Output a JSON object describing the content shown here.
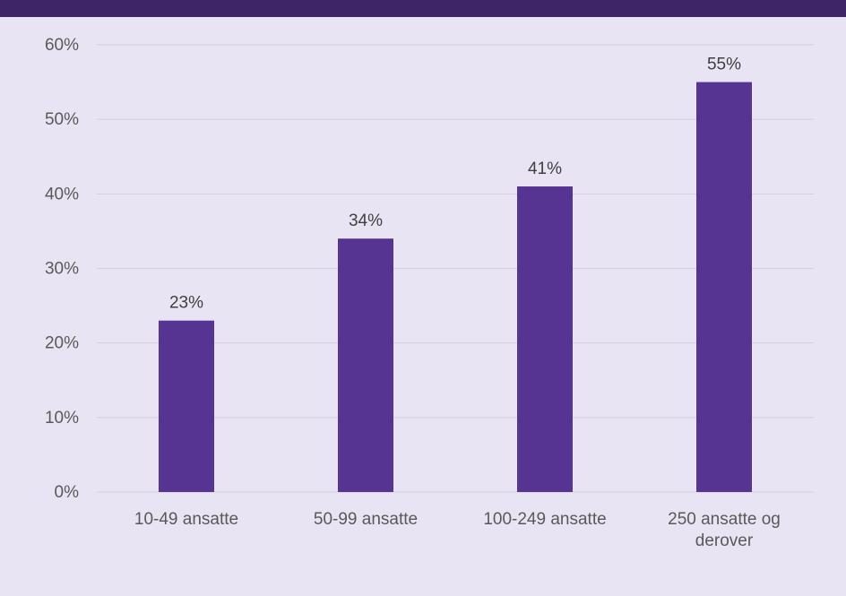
{
  "colors": {
    "background": "#e9e4f4",
    "header_bar": "#3e2568",
    "bar": "#553591",
    "gridline": "#d3cde0",
    "axis_text": "#595959",
    "label_text": "#3f3f3f"
  },
  "chart_data": {
    "type": "bar",
    "categories": [
      "10-49 ansatte",
      "50-99 ansatte",
      "100-249 ansatte",
      "250 ansatte og derover"
    ],
    "category_lines": [
      [
        "10-49 ansatte"
      ],
      [
        "50-99 ansatte"
      ],
      [
        "100-249 ansatte"
      ],
      [
        "250 ansatte og",
        "derover"
      ]
    ],
    "values": [
      23,
      34,
      41,
      55
    ],
    "data_labels": [
      "23%",
      "34%",
      "41%",
      "55%"
    ],
    "yticks": [
      0,
      10,
      20,
      30,
      40,
      50,
      60
    ],
    "ytick_labels": [
      "0%",
      "10%",
      "20%",
      "30%",
      "40%",
      "50%",
      "60%"
    ],
    "ylim": [
      0,
      60
    ],
    "grid": true,
    "title": "",
    "xlabel": "",
    "ylabel": ""
  }
}
